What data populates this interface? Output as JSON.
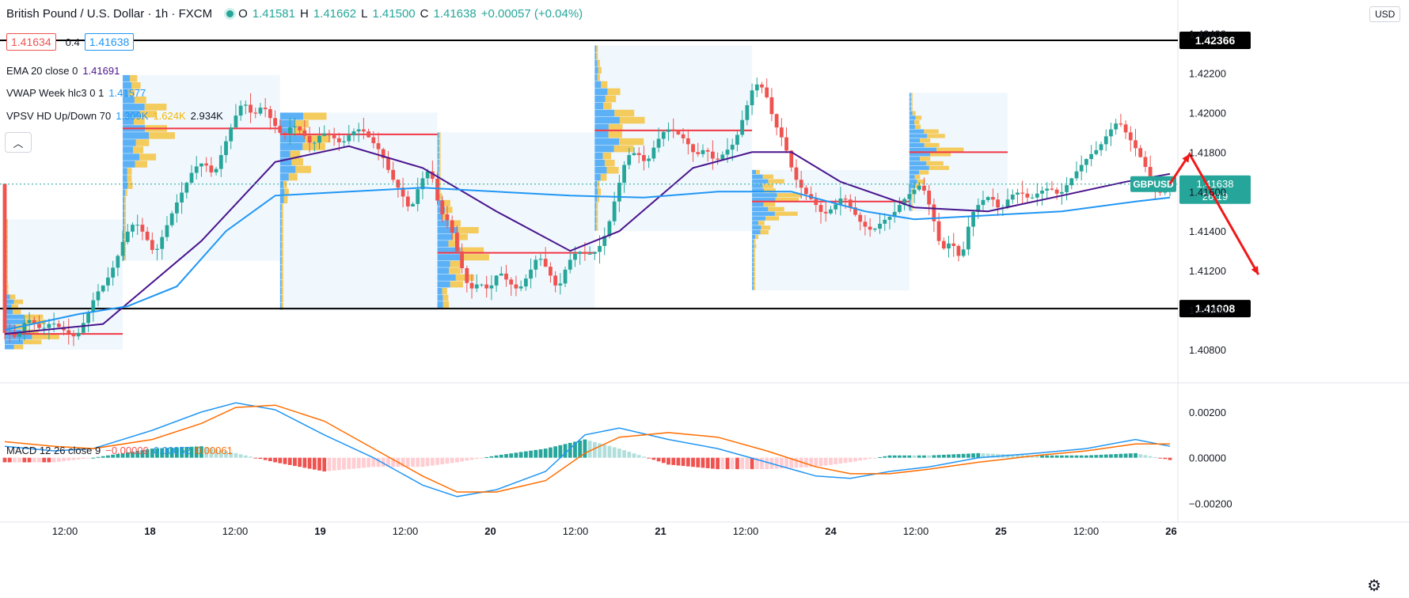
{
  "header": {
    "symbol_title": "British Pound / U.S. Dollar · 1h · FXCM",
    "open_label": "O",
    "open": "1.41581",
    "high_label": "H",
    "high": "1.41662",
    "low_label": "L",
    "low": "1.41500",
    "close_label": "C",
    "close": "1.41638",
    "change": "+0.00057 (+0.04%)",
    "sell_price": "1.41634",
    "spread": "0.4",
    "buy_price": "1.41638",
    "currency": "USD"
  },
  "indicators": {
    "ema": {
      "label": "EMA 20 close 0",
      "value": "1.41691",
      "color": "#4a148c"
    },
    "vwap": {
      "label": "VWAP Week hlc3 0 1",
      "value": "1.41577",
      "color": "#2196f3"
    },
    "vpsv": {
      "label": "VPSV HD Up/Down 70",
      "up": "1.309K",
      "down": "1.624K",
      "total": "2.934K",
      "up_color": "#2196f3",
      "down_color": "#f5c341"
    },
    "macd": {
      "label": "MACD 12 26 close 9",
      "hist": "−0.00009",
      "macd": "0.00052",
      "signal": "0.00061",
      "hist_color": "#ef5350",
      "macd_color": "#2196f3",
      "signal_color": "#ff6d00"
    }
  },
  "chart_data": {
    "type": "candlestick",
    "symbol": "GBPUSD",
    "timeframe": "1h",
    "ylim": [
      1.4064,
      1.4245
    ],
    "y_ticks": [
      "1.42400",
      "1.42200",
      "1.42000",
      "1.41800",
      "1.41600",
      "1.41400",
      "1.41200",
      "1.41000",
      "1.40800"
    ],
    "x_ticks": [
      "12:00",
      "18",
      "12:00",
      "19",
      "12:00",
      "20",
      "12:00",
      "21",
      "12:00",
      "24",
      "12:00",
      "25",
      "12:00",
      "26"
    ],
    "horizontal_levels": [
      {
        "value": 1.42366,
        "label": "1.42366"
      },
      {
        "value": 1.41008,
        "label": "1.41008"
      }
    ],
    "current_price": {
      "symbol": "GBPUSD",
      "value": "1.41638",
      "countdown": "26:19"
    },
    "price_path": [
      [
        0,
        1.4089
      ],
      [
        3,
        1.4086
      ],
      [
        5,
        1.4096
      ],
      [
        8,
        1.409
      ],
      [
        10,
        1.4094
      ],
      [
        13,
        1.4089
      ],
      [
        15,
        1.4086
      ],
      [
        17,
        1.4096
      ],
      [
        19,
        1.4108
      ],
      [
        21,
        1.4114
      ],
      [
        23,
        1.4124
      ],
      [
        25,
        1.4138
      ],
      [
        27,
        1.4145
      ],
      [
        29,
        1.4138
      ],
      [
        31,
        1.4128
      ],
      [
        33,
        1.414
      ],
      [
        35,
        1.4152
      ],
      [
        37,
        1.4162
      ],
      [
        39,
        1.4172
      ],
      [
        41,
        1.4175
      ],
      [
        43,
        1.4168
      ],
      [
        45,
        1.4182
      ],
      [
        47,
        1.4196
      ],
      [
        49,
        1.4206
      ],
      [
        51,
        1.4198
      ],
      [
        53,
        1.4204
      ],
      [
        55,
        1.4195
      ],
      [
        57,
        1.4188
      ],
      [
        59,
        1.4194
      ],
      [
        61,
        1.419
      ],
      [
        63,
        1.4183
      ],
      [
        65,
        1.419
      ],
      [
        67,
        1.4188
      ],
      [
        69,
        1.4184
      ],
      [
        71,
        1.419
      ],
      [
        73,
        1.4192
      ],
      [
        75,
        1.4186
      ],
      [
        77,
        1.418
      ],
      [
        79,
        1.4168
      ],
      [
        81,
        1.416
      ],
      [
        83,
        1.415
      ],
      [
        85,
        1.4165
      ],
      [
        87,
        1.4172
      ],
      [
        89,
        1.415
      ],
      [
        91,
        1.4144
      ],
      [
        93,
        1.4125
      ],
      [
        95,
        1.411
      ],
      [
        97,
        1.4114
      ],
      [
        99,
        1.411
      ],
      [
        101,
        1.412
      ],
      [
        103,
        1.4114
      ],
      [
        105,
        1.411
      ],
      [
        107,
        1.4118
      ],
      [
        109,
        1.4128
      ],
      [
        111,
        1.412
      ],
      [
        113,
        1.411
      ],
      [
        115,
        1.4124
      ],
      [
        117,
        1.413
      ],
      [
        119,
        1.4128
      ],
      [
        121,
        1.413
      ],
      [
        123,
        1.414
      ],
      [
        125,
        1.416
      ],
      [
        127,
        1.4178
      ],
      [
        129,
        1.418
      ],
      [
        131,
        1.4174
      ],
      [
        133,
        1.4185
      ],
      [
        135,
        1.4192
      ],
      [
        137,
        1.419
      ],
      [
        139,
        1.4186
      ],
      [
        141,
        1.4178
      ],
      [
        143,
        1.4182
      ],
      [
        145,
        1.4175
      ],
      [
        147,
        1.418
      ],
      [
        149,
        1.4185
      ],
      [
        151,
        1.42
      ],
      [
        153,
        1.4215
      ],
      [
        155,
        1.4212
      ],
      [
        157,
        1.4195
      ],
      [
        159,
        1.4185
      ],
      [
        161,
        1.4168
      ],
      [
        163,
        1.416
      ],
      [
        165,
        1.4155
      ],
      [
        167,
        1.4148
      ],
      [
        169,
        1.4152
      ],
      [
        171,
        1.4158
      ],
      [
        173,
        1.415
      ],
      [
        175,
        1.4143
      ],
      [
        177,
        1.414
      ],
      [
        179,
        1.4145
      ],
      [
        181,
        1.4148
      ],
      [
        183,
        1.4155
      ],
      [
        185,
        1.416
      ],
      [
        187,
        1.4164
      ],
      [
        189,
        1.415
      ],
      [
        191,
        1.413
      ],
      [
        193,
        1.4135
      ],
      [
        195,
        1.4125
      ],
      [
        197,
        1.4148
      ],
      [
        199,
        1.4155
      ],
      [
        201,
        1.4158
      ],
      [
        203,
        1.415
      ],
      [
        205,
        1.4158
      ],
      [
        207,
        1.416
      ],
      [
        209,
        1.4156
      ],
      [
        211,
        1.416
      ],
      [
        213,
        1.4162
      ],
      [
        215,
        1.4158
      ],
      [
        217,
        1.4165
      ],
      [
        219,
        1.4172
      ],
      [
        221,
        1.4178
      ],
      [
        223,
        1.4182
      ],
      [
        225,
        1.419
      ],
      [
        227,
        1.4196
      ],
      [
        229,
        1.4188
      ],
      [
        231,
        1.418
      ],
      [
        233,
        1.417
      ],
      [
        235,
        1.4158
      ],
      [
        237,
        1.4164
      ]
    ],
    "ema20": [
      [
        0,
        1.4088
      ],
      [
        20,
        1.4093
      ],
      [
        40,
        1.4135
      ],
      [
        55,
        1.4175
      ],
      [
        70,
        1.4183
      ],
      [
        85,
        1.4172
      ],
      [
        100,
        1.415
      ],
      [
        115,
        1.413
      ],
      [
        125,
        1.414
      ],
      [
        140,
        1.4172
      ],
      [
        152,
        1.418
      ],
      [
        160,
        1.418
      ],
      [
        170,
        1.4165
      ],
      [
        185,
        1.4152
      ],
      [
        200,
        1.415
      ],
      [
        215,
        1.4158
      ],
      [
        228,
        1.4165
      ],
      [
        237,
        1.4169
      ]
    ],
    "vwap": [
      [
        0,
        1.409
      ],
      [
        15,
        1.4098
      ],
      [
        25,
        1.4102
      ],
      [
        35,
        1.4112
      ],
      [
        45,
        1.414
      ],
      [
        55,
        1.4158
      ],
      [
        70,
        1.416
      ],
      [
        85,
        1.4162
      ],
      [
        100,
        1.416
      ],
      [
        115,
        1.4158
      ],
      [
        130,
        1.4157
      ],
      [
        145,
        1.416
      ],
      [
        160,
        1.416
      ],
      [
        175,
        1.415
      ],
      [
        185,
        1.4146
      ],
      [
        200,
        1.4148
      ],
      [
        215,
        1.415
      ],
      [
        230,
        1.4155
      ],
      [
        237,
        1.4157
      ]
    ],
    "volume_profile_sessions": [
      {
        "start": 0,
        "end": 24,
        "top": 1.4146,
        "bottom": 1.408,
        "poc": 1.4088
      },
      {
        "start": 24,
        "end": 56,
        "top": 1.4219,
        "bottom": 1.4125,
        "poc": 1.4192
      },
      {
        "start": 56,
        "end": 88,
        "top": 1.42,
        "bottom": 1.41,
        "poc": 1.4189
      },
      {
        "start": 88,
        "end": 120,
        "top": 1.419,
        "bottom": 1.4101,
        "poc": 1.4129
      },
      {
        "start": 120,
        "end": 152,
        "top": 1.4234,
        "bottom": 1.414,
        "poc": 1.4191
      },
      {
        "start": 152,
        "end": 184,
        "top": 1.4171,
        "bottom": 1.411,
        "poc": 1.4155
      },
      {
        "start": 184,
        "end": 204,
        "top": 1.421,
        "bottom": 1.415,
        "poc": 1.418
      }
    ],
    "forecast_arrow": [
      [
        237,
        1.4164
      ],
      [
        241,
        1.4179
      ],
      [
        255,
        1.4118
      ]
    ],
    "macd_ylim": [
      -0.0024,
      0.003
    ],
    "macd_ticks": [
      "0.00200",
      "0.00000",
      "−0.00200"
    ],
    "macd_line": [
      [
        0,
        0.0005
      ],
      [
        10,
        0.0003
      ],
      [
        18,
        0.0004
      ],
      [
        30,
        0.0012
      ],
      [
        40,
        0.002
      ],
      [
        47,
        0.0024
      ],
      [
        55,
        0.0021
      ],
      [
        65,
        0.001
      ],
      [
        75,
        0.0
      ],
      [
        85,
        -0.0012
      ],
      [
        92,
        -0.0017
      ],
      [
        100,
        -0.0014
      ],
      [
        110,
        -0.0006
      ],
      [
        118,
        0.001
      ],
      [
        125,
        0.0013
      ],
      [
        135,
        0.0008
      ],
      [
        145,
        0.0004
      ],
      [
        155,
        -0.0002
      ],
      [
        165,
        -0.0008
      ],
      [
        172,
        -0.0009
      ],
      [
        180,
        -0.0006
      ],
      [
        188,
        -0.0004
      ],
      [
        198,
        0.0
      ],
      [
        210,
        0.0002
      ],
      [
        220,
        0.0004
      ],
      [
        230,
        0.0008
      ],
      [
        237,
        0.0005
      ]
    ],
    "macd_signal": [
      [
        0,
        0.0007
      ],
      [
        10,
        0.0005
      ],
      [
        18,
        0.0004
      ],
      [
        30,
        0.0008
      ],
      [
        40,
        0.0015
      ],
      [
        47,
        0.0022
      ],
      [
        55,
        0.0023
      ],
      [
        65,
        0.0016
      ],
      [
        75,
        0.0004
      ],
      [
        85,
        -0.0008
      ],
      [
        92,
        -0.0015
      ],
      [
        100,
        -0.0015
      ],
      [
        110,
        -0.001
      ],
      [
        118,
        0.0002
      ],
      [
        125,
        0.0009
      ],
      [
        135,
        0.0011
      ],
      [
        145,
        0.0009
      ],
      [
        155,
        0.0003
      ],
      [
        165,
        -0.0004
      ],
      [
        172,
        -0.0007
      ],
      [
        180,
        -0.0007
      ],
      [
        188,
        -0.0005
      ],
      [
        198,
        -0.0002
      ],
      [
        210,
        0.0001
      ],
      [
        220,
        0.0003
      ],
      [
        230,
        0.0006
      ],
      [
        237,
        0.0006
      ]
    ]
  }
}
